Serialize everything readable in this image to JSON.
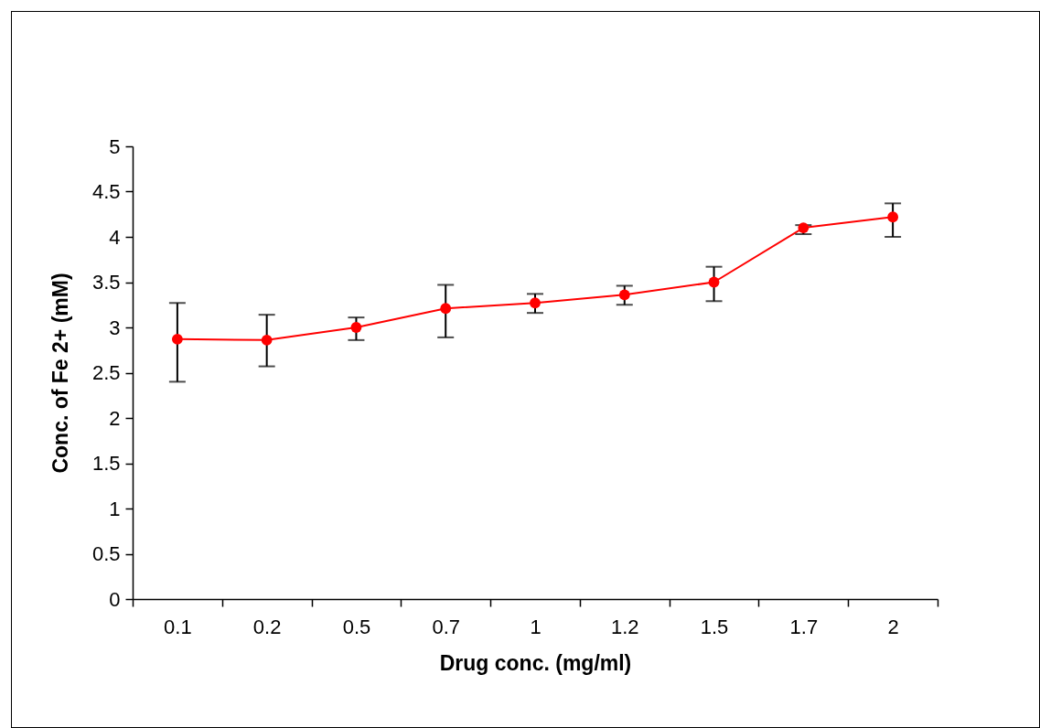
{
  "chart_data": {
    "type": "line",
    "xlabel": "Drug conc. (mg/ml)",
    "ylabel": "Conc. of Fe 2+ (mM)",
    "categories": [
      "0.1",
      "0.2",
      "0.5",
      "0.7",
      "1",
      "1.2",
      "1.5",
      "1.7",
      "2"
    ],
    "series": [
      {
        "color": "#ff0000",
        "values": [
          2.87,
          2.86,
          3.0,
          3.21,
          3.27,
          3.36,
          3.5,
          4.1,
          4.22
        ],
        "errors": [
          [
            2.4,
            3.27
          ],
          [
            2.57,
            3.14
          ],
          [
            2.86,
            3.11
          ],
          [
            2.89,
            3.47
          ],
          [
            3.16,
            3.37
          ],
          [
            3.25,
            3.46
          ],
          [
            3.29,
            3.67
          ],
          [
            4.03,
            4.13
          ],
          [
            4.0,
            4.37
          ]
        ]
      }
    ],
    "ylim": [
      0,
      5
    ],
    "yticks": [
      0,
      0.5,
      1,
      1.5,
      2,
      2.5,
      3,
      3.5,
      4,
      4.5,
      5
    ],
    "grid": false,
    "marker": "circle",
    "line_style": "solid"
  }
}
